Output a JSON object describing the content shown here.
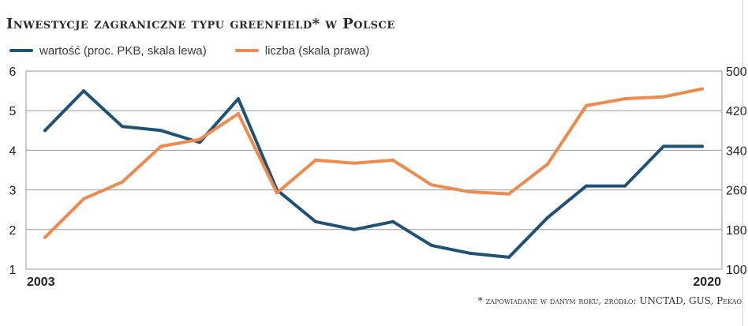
{
  "header": {
    "title": "Inwestycje zagraniczne typu greenfield* w Polsce"
  },
  "footer": {
    "footnote": "* zapowiadane w danym roku, źródło: UNCTAD, GUS, Pekao"
  },
  "colors": {
    "series_value": "#1f5276",
    "series_count": "#ee8a4e",
    "grid": "#9a9a9a",
    "axis": "#222222"
  },
  "chart_data": {
    "type": "line",
    "title": "Inwestycje zagraniczne typu greenfield* w Polsce",
    "x": [
      2003,
      2004,
      2005,
      2006,
      2007,
      2008,
      2009,
      2010,
      2011,
      2012,
      2013,
      2014,
      2015,
      2016,
      2017,
      2018,
      2019,
      2020
    ],
    "x_tick_labels": [
      "2003",
      "2020"
    ],
    "y_left": {
      "min": 1,
      "max": 6,
      "ticks": [
        "1",
        "2",
        "3",
        "4",
        "5",
        "6"
      ]
    },
    "y_right": {
      "min": 100,
      "max": 500,
      "ticks": [
        "100",
        "180",
        "260",
        "340",
        "420",
        "500"
      ]
    },
    "grid": true,
    "legend_position": "top-left",
    "series": [
      {
        "name": "wartość (proc. PKB, skala lewa)",
        "axis": "left",
        "color": "#1f5276",
        "values": [
          4.5,
          5.5,
          4.6,
          4.5,
          4.2,
          5.3,
          3.0,
          2.2,
          2.0,
          2.2,
          1.6,
          1.4,
          1.3,
          2.3,
          3.1,
          3.1,
          4.1,
          4.1
        ]
      },
      {
        "name": "liczba (skala prawa)",
        "axis": "right",
        "color": "#ee8a4e",
        "values": [
          164,
          242,
          276,
          348,
          362,
          414,
          254,
          320,
          314,
          320,
          270,
          256,
          252,
          312,
          430,
          444,
          448,
          464
        ]
      }
    ]
  }
}
